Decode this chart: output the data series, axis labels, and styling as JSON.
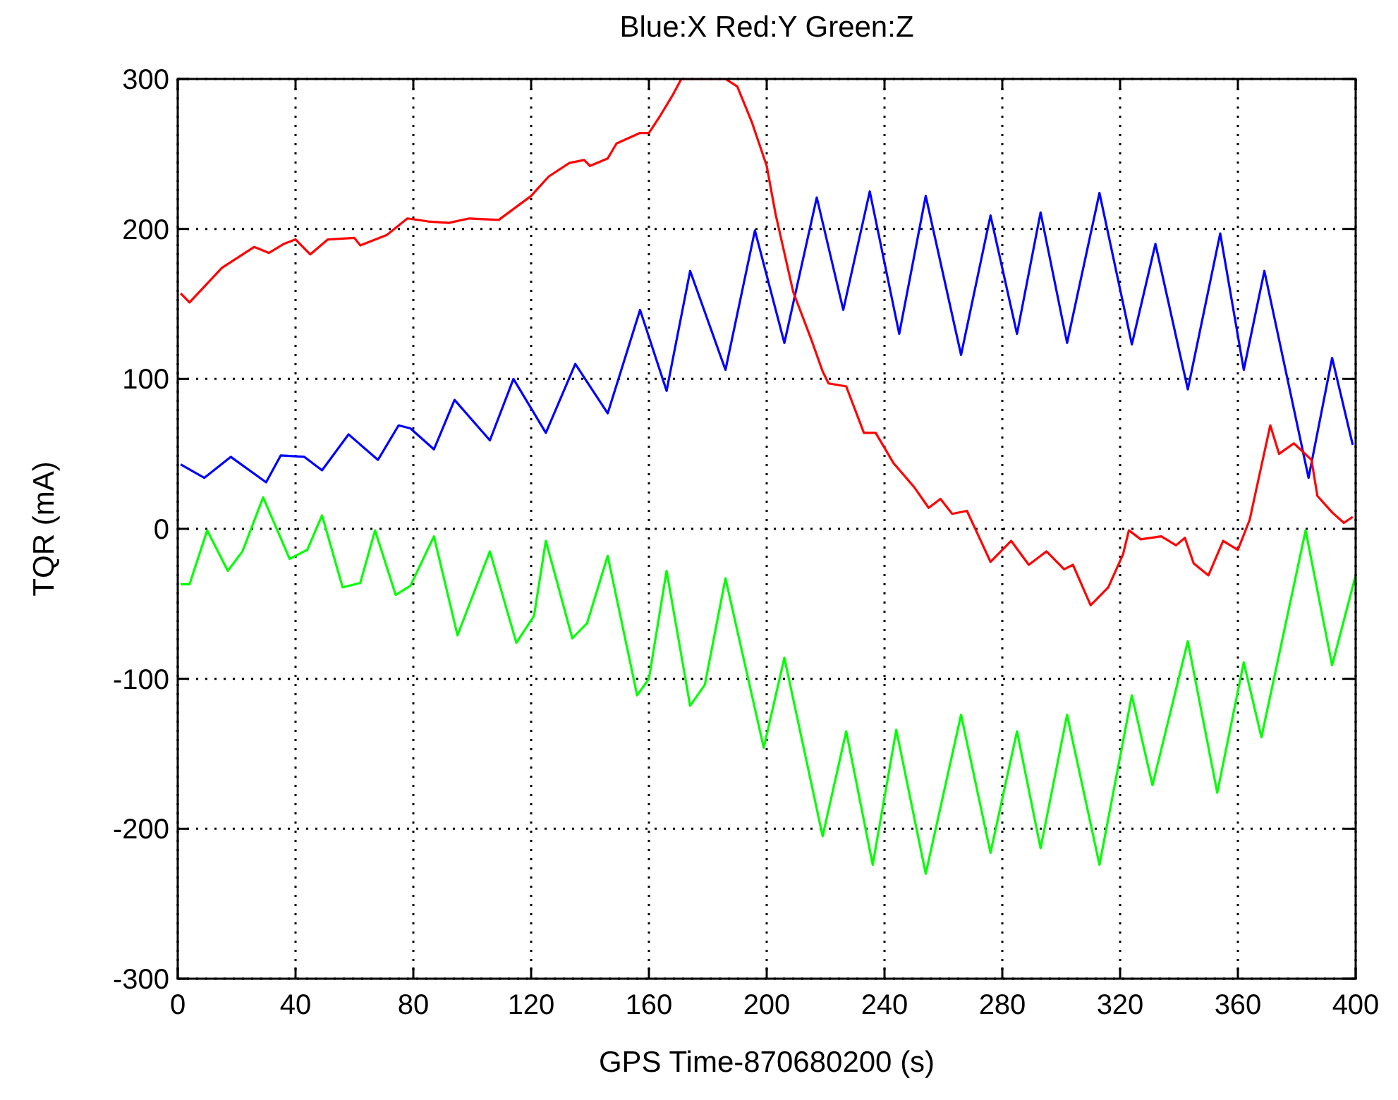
{
  "chart_data": {
    "type": "line",
    "title": "Blue:X Red:Y Green:Z",
    "xlabel": "GPS Time-870680200 (s)",
    "ylabel": "TQR (mA)",
    "xlim": [
      0,
      400
    ],
    "ylim": [
      -300,
      300
    ],
    "xticks": [
      0,
      40,
      80,
      120,
      160,
      200,
      240,
      280,
      320,
      360,
      400
    ],
    "yticks": [
      -300,
      -200,
      -100,
      0,
      100,
      200,
      300
    ],
    "grid": true,
    "line_style": "solid",
    "series": [
      {
        "color": "#0000ff",
        "x": [
          1,
          9,
          18,
          30,
          35,
          43,
          49,
          58,
          68,
          75,
          79,
          87,
          94,
          106,
          114,
          125,
          135,
          146,
          157,
          166,
          174,
          186,
          196,
          206,
          217,
          226,
          235,
          245,
          254,
          266,
          276,
          285,
          293,
          302,
          313,
          324,
          332,
          343,
          354,
          362,
          369,
          384,
          392,
          399
        ],
        "values": [
          43,
          34,
          48,
          31,
          49,
          48,
          39,
          63,
          46,
          69,
          67,
          53,
          86,
          59,
          100,
          64,
          110,
          77,
          146,
          92,
          172,
          106,
          199,
          124,
          221,
          146,
          225,
          130,
          222,
          116,
          209,
          130,
          211,
          124,
          224,
          123,
          190,
          93,
          197,
          106,
          172,
          34,
          114,
          56
        ]
      },
      {
        "color": "#ff0000",
        "x": [
          1,
          4,
          15,
          26,
          31,
          36,
          40,
          45,
          51,
          60,
          62,
          71,
          78,
          85,
          92,
          99,
          109,
          120,
          126,
          133,
          138,
          140,
          146,
          149,
          157,
          160,
          164,
          168,
          171,
          186,
          190,
          195,
          200,
          203,
          209,
          215,
          219,
          221,
          227,
          233,
          237,
          243,
          250,
          255,
          259,
          263,
          268,
          272,
          276,
          283,
          289,
          295,
          301,
          304,
          310,
          316,
          321,
          323,
          327,
          334,
          339,
          342,
          345,
          350,
          355,
          360,
          364,
          371,
          374,
          379,
          385,
          387,
          392,
          396,
          399
        ],
        "values": [
          157,
          151,
          174,
          188,
          184,
          190,
          193,
          183,
          193,
          194,
          189,
          196,
          207,
          205,
          204,
          207,
          206,
          222,
          235,
          244,
          246,
          242,
          247,
          257,
          264,
          264,
          276,
          289,
          300,
          300,
          295,
          271,
          242,
          210,
          158,
          127,
          105,
          97,
          95,
          64,
          64,
          44,
          28,
          14,
          20,
          10,
          12,
          -5,
          -22,
          -8,
          -24,
          -15,
          -27,
          -24,
          -51,
          -39,
          -17,
          -1,
          -7,
          -5,
          -11,
          -6,
          -23,
          -31,
          -8,
          -14,
          6,
          69,
          50,
          57,
          46,
          22,
          11,
          4,
          8
        ]
      },
      {
        "color": "#00ff00",
        "x": [
          1,
          4,
          10,
          17,
          22,
          29,
          38,
          41,
          44,
          49,
          56,
          62,
          67,
          74,
          79,
          87,
          95,
          106,
          115,
          121,
          125,
          134,
          139,
          146,
          156,
          160,
          166,
          174,
          179,
          186,
          199,
          206,
          219,
          227,
          236,
          244,
          254,
          266,
          276,
          285,
          293,
          302,
          313,
          324,
          331,
          343,
          353,
          362,
          368,
          383,
          392,
          400
        ],
        "values": [
          -37,
          -37,
          -1,
          -28,
          -15,
          21,
          -20,
          -17,
          -14,
          9,
          -39,
          -36,
          -1,
          -44,
          -38,
          -5,
          -71,
          -15,
          -76,
          -58,
          -8,
          -73,
          -63,
          -18,
          -111,
          -100,
          -28,
          -118,
          -104,
          -33,
          -146,
          -86,
          -205,
          -135,
          -224,
          -134,
          -230,
          -124,
          -216,
          -135,
          -213,
          -124,
          -224,
          -111,
          -171,
          -75,
          -176,
          -89,
          -139,
          -1,
          -91,
          -31
        ]
      }
    ]
  }
}
